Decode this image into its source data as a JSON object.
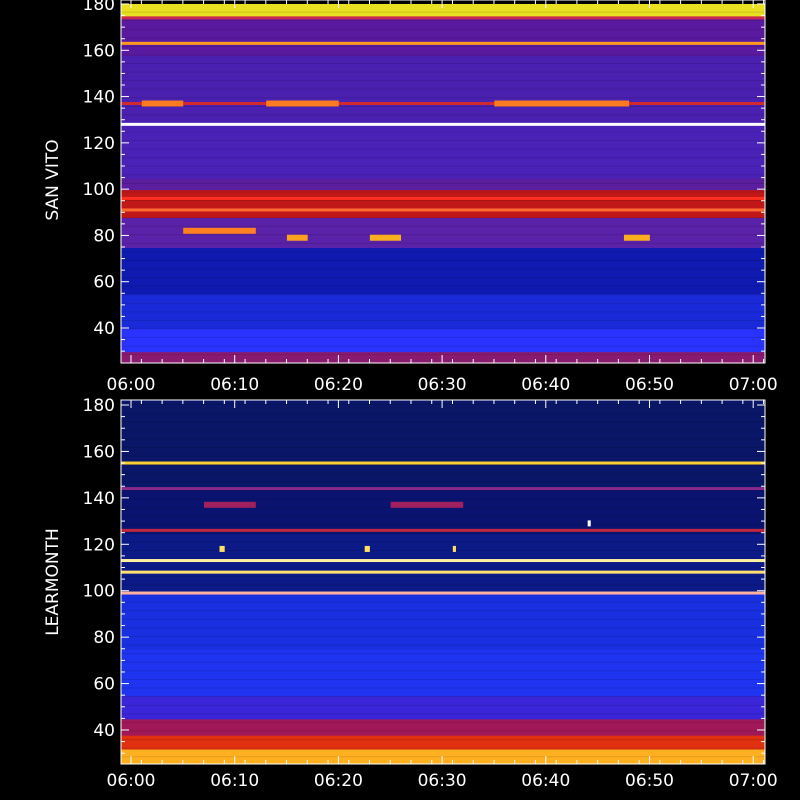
{
  "chart_data": [
    {
      "type": "heatmap",
      "station": "SAN VITO",
      "ylabel": "SAN VITO",
      "xlabel": "",
      "x_tick_labels": [
        "06:00",
        "06:10",
        "06:20",
        "06:30",
        "06:40",
        "06:50",
        "07:00"
      ],
      "y_tick_labels": [
        "40",
        "60",
        "80",
        "100",
        "120",
        "140",
        "160",
        "180"
      ],
      "x_range_minutes": [
        0,
        62
      ],
      "y_range": [
        25,
        180
      ],
      "background_bands": [
        {
          "from": 25,
          "to": 30,
          "color": "#8a1a70"
        },
        {
          "from": 30,
          "to": 40,
          "color": "#2a32ff"
        },
        {
          "from": 40,
          "to": 55,
          "color": "#1a2ad8"
        },
        {
          "from": 55,
          "to": 75,
          "color": "#0f1ab0"
        },
        {
          "from": 75,
          "to": 88,
          "color": "#5a22a8"
        },
        {
          "from": 88,
          "to": 100,
          "color": "#c01818"
        },
        {
          "from": 100,
          "to": 105,
          "color": "#5a1e9e"
        },
        {
          "from": 105,
          "to": 128,
          "color": "#4a22b8"
        },
        {
          "from": 128,
          "to": 158,
          "color": "#4a20b0"
        },
        {
          "from": 158,
          "to": 175,
          "color": "#5a1aa0"
        },
        {
          "from": 175,
          "to": 180,
          "color": "#e8e020"
        }
      ],
      "lines": [
        {
          "freq": 128,
          "color": "#ffffff"
        },
        {
          "freq": 163,
          "color": "#ff9a20"
        },
        {
          "freq": 96,
          "color": "#ff3020"
        },
        {
          "freq": 91,
          "color": "#ff6a30"
        },
        {
          "freq": 174,
          "color": "#c82850"
        },
        {
          "freq": 137,
          "color": "#d02a30"
        }
      ],
      "bursts": [
        {
          "freq": 137,
          "t0": 2,
          "t1": 6,
          "color": "#ff7a20"
        },
        {
          "freq": 137,
          "t0": 14,
          "t1": 21,
          "color": "#ff7a20"
        },
        {
          "freq": 137,
          "t0": 36,
          "t1": 49,
          "color": "#ff7a20"
        },
        {
          "freq": 82,
          "t0": 6,
          "t1": 13,
          "color": "#ff8020"
        },
        {
          "freq": 79,
          "t0": 24,
          "t1": 27,
          "color": "#ffb020"
        },
        {
          "freq": 79,
          "t0": 48.5,
          "t1": 51,
          "color": "#ffb020"
        },
        {
          "freq": 79,
          "t0": 16,
          "t1": 18,
          "color": "#ffa020"
        }
      ]
    },
    {
      "type": "heatmap",
      "station": "LEARMONTH",
      "ylabel": "LEARMONTH",
      "xlabel": "",
      "x_tick_labels": [
        "06:00",
        "06:10",
        "06:20",
        "06:30",
        "06:40",
        "06:50",
        "07:00"
      ],
      "y_tick_labels": [
        "40",
        "60",
        "80",
        "100",
        "120",
        "140",
        "160",
        "180"
      ],
      "x_range_minutes": [
        0,
        62
      ],
      "y_range": [
        25,
        182
      ],
      "background_bands": [
        {
          "from": 25,
          "to": 32,
          "color": "#ffb020"
        },
        {
          "from": 32,
          "to": 38,
          "color": "#e03010"
        },
        {
          "from": 38,
          "to": 45,
          "color": "#a01858"
        },
        {
          "from": 45,
          "to": 55,
          "color": "#3a26d8"
        },
        {
          "from": 55,
          "to": 75,
          "color": "#1e34f0"
        },
        {
          "from": 75,
          "to": 100,
          "color": "#1830e0"
        },
        {
          "from": 100,
          "to": 125,
          "color": "#0c1a88"
        },
        {
          "from": 125,
          "to": 145,
          "color": "#0a1470"
        },
        {
          "from": 145,
          "to": 182,
          "color": "#0a1668"
        }
      ],
      "lines": [
        {
          "freq": 155,
          "color": "#ffd030"
        },
        {
          "freq": 113,
          "color": "#fff0a0"
        },
        {
          "freq": 108,
          "color": "#ffe070"
        },
        {
          "freq": 99,
          "color": "#ffb0a0"
        },
        {
          "freq": 126,
          "color": "#c02840"
        },
        {
          "freq": 144,
          "color": "#8a2a8a"
        }
      ],
      "bursts": [
        {
          "freq": 137,
          "t0": 8,
          "t1": 13,
          "color": "#a02060"
        },
        {
          "freq": 137,
          "t0": 26,
          "t1": 33,
          "color": "#a02060"
        },
        {
          "freq": 118,
          "t0": 9.5,
          "t1": 10,
          "color": "#ffe060"
        },
        {
          "freq": 118,
          "t0": 23.5,
          "t1": 24,
          "color": "#ffe060"
        },
        {
          "freq": 118,
          "t0": 32,
          "t1": 32.3,
          "color": "#ffe060"
        },
        {
          "freq": 129,
          "t0": 45,
          "t1": 45.3,
          "color": "#ffffff"
        }
      ]
    }
  ]
}
